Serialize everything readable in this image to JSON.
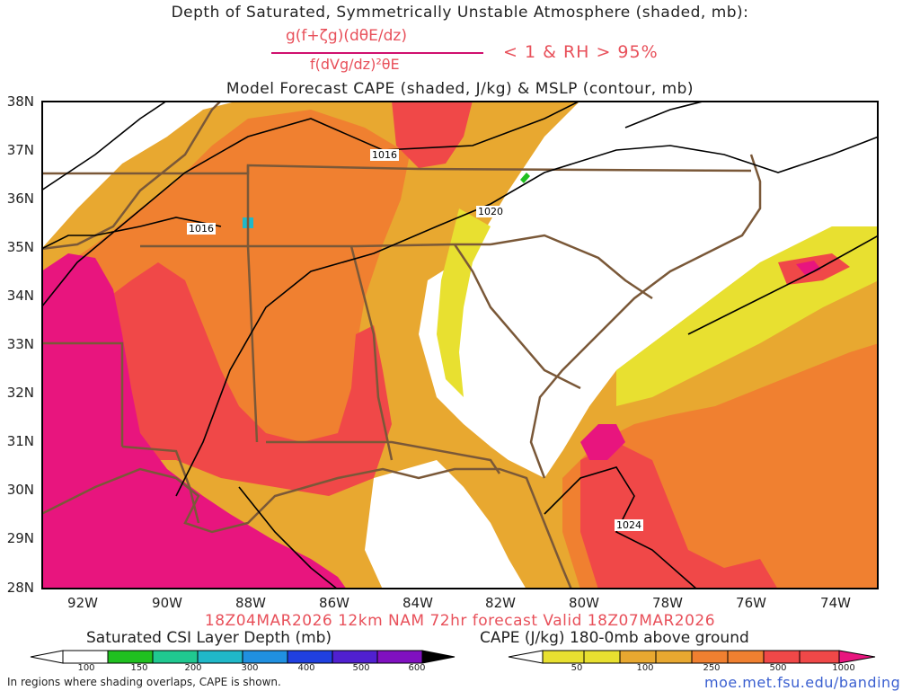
{
  "header": {
    "title_line1": "Depth of Saturated, Symmetrically Unstable Atmosphere (shaded, mb):",
    "fraction_numerator": "g(f+ζg)(dθE/dz)",
    "fraction_denominator": "f(dVg/dz)²θE",
    "condition": "< 1 & RH > 95%",
    "title_line3": "Model Forecast CAPE (shaded, J/kg) & MSLP (contour, mb)"
  },
  "map": {
    "lat_labels": [
      "38N",
      "37N",
      "36N",
      "35N",
      "34N",
      "33N",
      "32N",
      "31N",
      "30N",
      "29N",
      "28N"
    ],
    "lon_labels": [
      "92W",
      "90W",
      "88W",
      "86W",
      "84W",
      "82W",
      "80W",
      "78W",
      "76W",
      "74W"
    ],
    "isobar_labels": [
      {
        "text": "1016",
        "id": "isobar-1016-north"
      },
      {
        "text": "1016",
        "id": "isobar-1016-west"
      },
      {
        "text": "1020",
        "id": "isobar-1020"
      },
      {
        "text": "1024",
        "id": "isobar-1024"
      }
    ],
    "colors": {
      "cape_yellow": "#e8e030",
      "cape_gold": "#e8a830",
      "cape_orange": "#f08030",
      "cape_red": "#f04848",
      "cape_magenta": "#e8157e",
      "borders": "#7a5838",
      "isobars": "#000000"
    }
  },
  "footer": {
    "valid_line": "18Z04MAR2026 12km NAM 72hr forecast Valid 18Z07MAR2026",
    "csi_title": "Saturated CSI Layer Depth (mb)",
    "cape_title": "CAPE (J/kg) 180-0mb above ground",
    "csi_ticks": [
      "100",
      "150",
      "200",
      "300",
      "400",
      "500",
      "600"
    ],
    "cape_ticks": [
      "50",
      "100",
      "250",
      "500",
      "1000"
    ],
    "csi_colors": [
      "#20c020",
      "#20c890",
      "#20b8c8",
      "#2090e0",
      "#2040e0",
      "#5020d0",
      "#8010c0"
    ],
    "cape_colors": [
      "#e8e030",
      "#e8a830",
      "#f08030",
      "#f04848",
      "#e8157e"
    ],
    "footnote": "In regions where shading overlaps, CAPE is shown.",
    "url": "moe.met.fsu.edu/banding"
  }
}
